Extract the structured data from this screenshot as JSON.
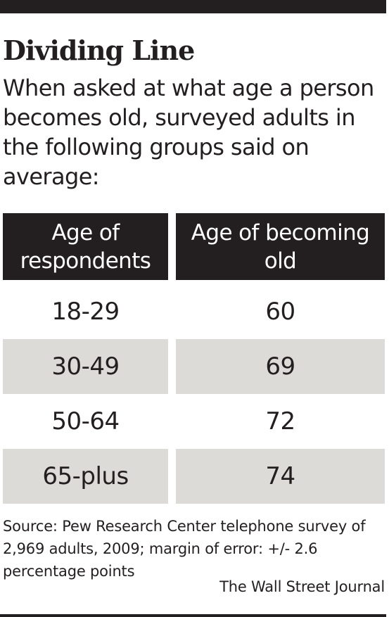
{
  "header": {
    "title": "Dividing Line",
    "subtitle": "When asked at what age a person becomes old, surveyed adults in the following groups said on average:"
  },
  "chart_data": {
    "type": "table",
    "columns": [
      "Age of respondents",
      "Age of becoming old"
    ],
    "rows": [
      [
        "18-29",
        "60"
      ],
      [
        "30-49",
        "69"
      ],
      [
        "50-64",
        "72"
      ],
      [
        "65-plus",
        "74"
      ]
    ]
  },
  "footer": {
    "source": "Source: Pew Research Center telephone survey of 2,969 adults, 2009; margin of error: +/- 2.6 percentage points",
    "credit": "The Wall Street Journal"
  },
  "colors": {
    "rule": "#231f20",
    "header_bg": "#231f20",
    "header_text": "#ffffff",
    "shaded_row": "#dcdbd8"
  }
}
